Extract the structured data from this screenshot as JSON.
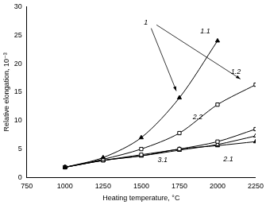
{
  "chart_data": {
    "type": "line",
    "x_label": "Heating temperature, °C",
    "y_label": "Relative elongation, 10⁻³",
    "annotations": [
      "1"
    ],
    "series": [
      {
        "name": "1.1",
        "color": "#000000",
        "marker": "triangle-filled",
        "line_style": "solid",
        "x": [
          1000,
          1250,
          1500,
          1750,
          2000
        ],
        "values": [
          1.8,
          3.5,
          7,
          14,
          24
        ]
      },
      {
        "name": "1.2",
        "color": "#000000",
        "marker": "square-open",
        "line_style": "solid",
        "x": [
          1000,
          1250,
          1500,
          1750,
          2000,
          2250
        ],
        "values": [
          1.8,
          3.2,
          5,
          7.8,
          12.8,
          16.3
        ]
      },
      {
        "name": "2.2",
        "color": "#000000",
        "marker": "square-open",
        "line_style": "solid",
        "x": [
          1000,
          1250,
          1500,
          1750,
          2000,
          2250
        ],
        "values": [
          1.8,
          3,
          4,
          5,
          6.3,
          8.5
        ]
      },
      {
        "name": "2.1",
        "color": "#000000",
        "marker": "triangle-open",
        "line_style": "solid",
        "x": [
          1000,
          1250,
          1500,
          1750,
          2000,
          2250
        ],
        "values": [
          1.8,
          3,
          3.8,
          4.8,
          5.8,
          7.3
        ]
      },
      {
        "name": "3.1",
        "color": "#000000",
        "marker": "triangle-filled",
        "line_style": "solid",
        "x": [
          1000,
          1250,
          1500,
          1750,
          2000,
          2250
        ],
        "values": [
          1.8,
          3,
          3.8,
          5,
          5.6,
          6.3
        ]
      }
    ],
    "xlim": [
      750,
      2250
    ],
    "xticks": [
      750,
      1000,
      1250,
      1500,
      1750,
      2000,
      2250
    ],
    "ylim": [
      0,
      30
    ],
    "yticks": [
      0,
      5,
      10,
      15,
      20,
      25,
      30
    ],
    "grid": false
  }
}
